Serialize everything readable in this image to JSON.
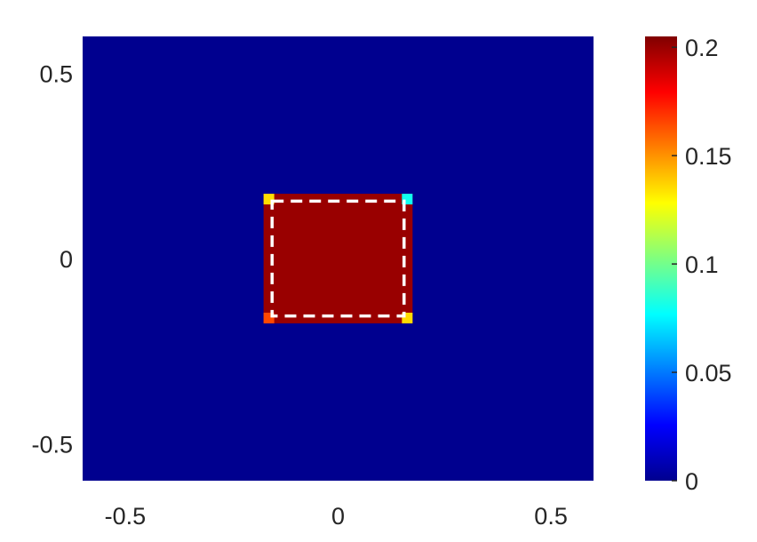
{
  "chart_data": {
    "type": "heatmap",
    "title": "",
    "xlabel": "",
    "ylabel": "",
    "xlim": [
      -0.6,
      0.6
    ],
    "ylim": [
      -0.6,
      0.6
    ],
    "x_ticks": [
      -0.5,
      0,
      0.5
    ],
    "x_tick_labels": [
      "-0.5",
      "0",
      "0.5"
    ],
    "y_ticks": [
      -0.5,
      0,
      0.5
    ],
    "y_tick_labels": [
      "-0.5",
      "0",
      "0.5"
    ],
    "colormap": "jet",
    "clim": [
      0,
      0.205
    ],
    "colorbar": {
      "ticks": [
        0,
        0.05,
        0.1,
        0.15,
        0.2
      ],
      "tick_labels": [
        "0",
        "0.05",
        "0.1",
        "0.15",
        "0.2"
      ]
    },
    "background_value": 0,
    "square_region": {
      "x": [
        -0.175,
        0.175
      ],
      "y": [
        -0.175,
        0.175
      ],
      "value": 0.2
    },
    "corner_cells": [
      {
        "x": -0.175,
        "y": 0.175,
        "value": 0.135
      },
      {
        "x": 0.175,
        "y": 0.175,
        "value": 0.08
      },
      {
        "x": -0.175,
        "y": -0.175,
        "value": 0.165
      },
      {
        "x": 0.175,
        "y": -0.175,
        "value": 0.135
      }
    ],
    "dashed_outline": {
      "x": [
        -0.155,
        0.155
      ],
      "y": [
        -0.155,
        0.155
      ],
      "color": "#ffffff"
    }
  }
}
